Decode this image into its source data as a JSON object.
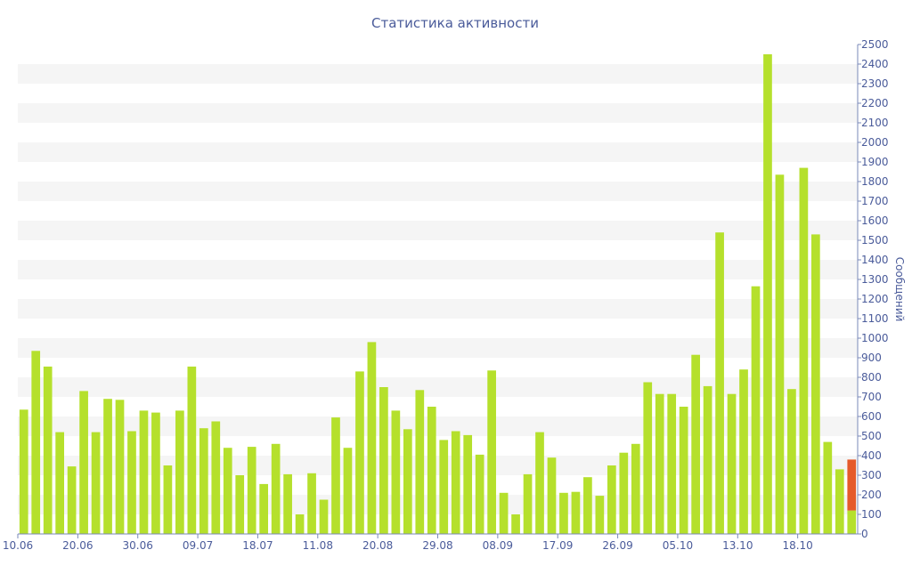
{
  "chart_data": {
    "type": "bar",
    "title": "Статистика активности",
    "xlabel": "",
    "ylabel": "Сообщений",
    "ylim": [
      0,
      2500
    ],
    "yticks": [
      0,
      100,
      200,
      300,
      400,
      500,
      600,
      700,
      800,
      900,
      1000,
      1100,
      1200,
      1300,
      1400,
      1500,
      1600,
      1700,
      1800,
      1900,
      2000,
      2100,
      2200,
      2300,
      2400,
      2500
    ],
    "x_tick_labels": [
      {
        "index": 0,
        "label": "10.06"
      },
      {
        "index": 5,
        "label": "20.06"
      },
      {
        "index": 10,
        "label": "30.06"
      },
      {
        "index": 15,
        "label": "09.07"
      },
      {
        "index": 20,
        "label": "18.07"
      },
      {
        "index": 25,
        "label": "11.08"
      },
      {
        "index": 30,
        "label": "20.08"
      },
      {
        "index": 35,
        "label": "29.08"
      },
      {
        "index": 40,
        "label": "08.09"
      },
      {
        "index": 45,
        "label": "17.09"
      },
      {
        "index": 50,
        "label": "26.09"
      },
      {
        "index": 55,
        "label": "05.10"
      },
      {
        "index": 60,
        "label": "13.10"
      },
      {
        "index": 65,
        "label": "18.10"
      }
    ],
    "grid": "horizontal alternating bands",
    "colors": {
      "bar": "#b5e02c",
      "highlight": "#e55a2b",
      "band": "#f5f5f5",
      "text": "#4a5b9a",
      "axis": "#7a89b8"
    },
    "values": [
      635,
      935,
      855,
      520,
      345,
      730,
      520,
      690,
      685,
      525,
      630,
      620,
      350,
      630,
      855,
      540,
      575,
      440,
      300,
      445,
      255,
      460,
      305,
      100,
      310,
      175,
      595,
      440,
      830,
      980,
      750,
      630,
      535,
      735,
      650,
      480,
      525,
      505,
      405,
      835,
      210,
      100,
      305,
      520,
      390,
      210,
      215,
      290,
      195,
      350,
      415,
      460,
      775,
      715,
      715,
      650,
      915,
      755,
      1540,
      715,
      840,
      1265,
      2450,
      1835,
      740,
      1870,
      1530,
      470,
      330,
      120
    ],
    "last_bar_highlight": {
      "from": 120,
      "to": 380
    }
  }
}
